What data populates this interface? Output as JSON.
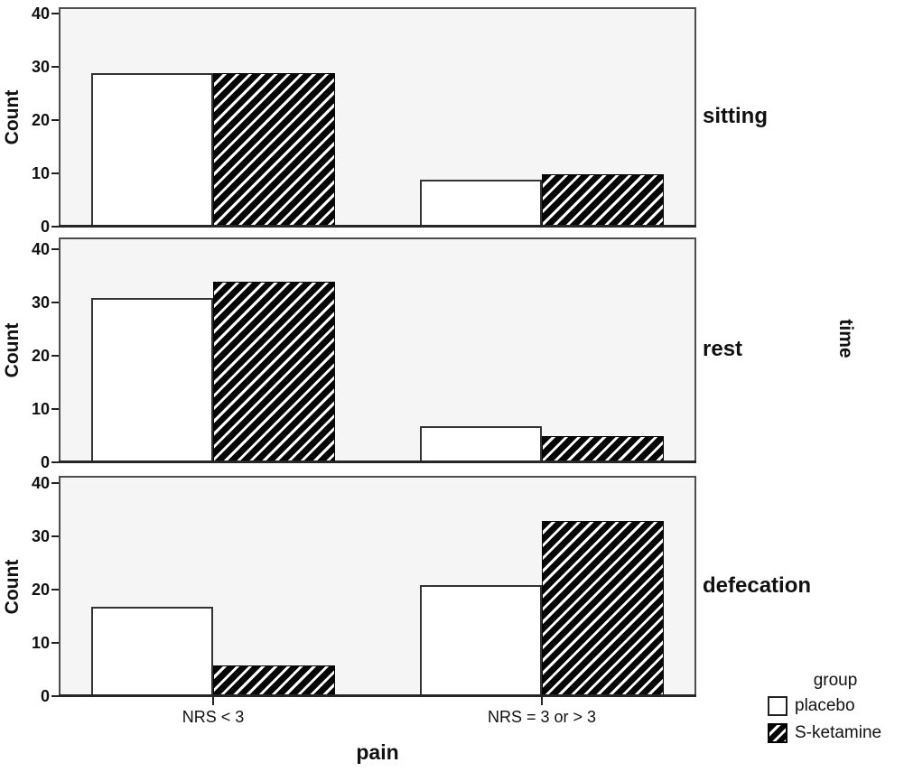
{
  "chart_data": {
    "type": "bar",
    "layout": "three stacked facet panels sharing one categorical x axis",
    "xlabel": "pain",
    "ylabel": "Count",
    "facet_axis_label": "time",
    "ylim": [
      0,
      40
    ],
    "yticks": [
      0,
      10,
      20,
      30,
      40
    ],
    "grid": "off",
    "categories": [
      "NRS < 3",
      "NRS = 3 or > 3"
    ],
    "legend": {
      "title": "group",
      "position": "bottom-right",
      "items": [
        {
          "label": "placebo",
          "swatch": "white-fill"
        },
        {
          "label": "S-ketamine",
          "swatch": "black-white-diagonal-hatch"
        }
      ]
    },
    "panels": [
      {
        "label": "sitting",
        "series": [
          {
            "name": "placebo",
            "values": [
              29,
              9
            ]
          },
          {
            "name": "S-ketamine",
            "values": [
              29,
              10
            ]
          }
        ]
      },
      {
        "label": "rest",
        "series": [
          {
            "name": "placebo",
            "values": [
              31,
              7
            ]
          },
          {
            "name": "S-ketamine",
            "values": [
              34,
              5
            ]
          }
        ]
      },
      {
        "label": "defecation",
        "series": [
          {
            "name": "placebo",
            "values": [
              17,
              21
            ]
          },
          {
            "name": "S-ketamine",
            "values": [
              6,
              33
            ]
          }
        ]
      }
    ]
  },
  "colors": {
    "panel_background": "#f5f5f5",
    "panel_border": "#4d4d4d",
    "axis_line": "#262626",
    "bar_fill_placebo": "#ffffff",
    "bar_border": "#333333",
    "hatch_background": "#060606",
    "hatch_stripe": "#ffffff",
    "text": "#111111"
  }
}
